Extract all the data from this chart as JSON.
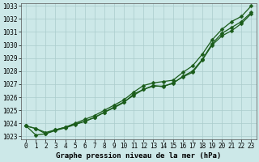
{
  "bg_color": "#cce8e8",
  "grid_color": "#aacccc",
  "line_color": "#1a5c1a",
  "xlabel": "Graphe pression niveau de la mer (hPa)",
  "xlim": [
    -0.5,
    23.5
  ],
  "ylim": [
    1022.8,
    1033.2
  ],
  "yticks": [
    1023,
    1024,
    1025,
    1026,
    1027,
    1028,
    1029,
    1030,
    1031,
    1032,
    1033
  ],
  "xticks": [
    0,
    1,
    2,
    3,
    4,
    5,
    6,
    7,
    8,
    9,
    10,
    11,
    12,
    13,
    14,
    15,
    16,
    17,
    18,
    19,
    20,
    21,
    22,
    23
  ],
  "line1": [
    1023.8,
    1023.6,
    1023.2,
    1023.5,
    1023.7,
    1024.0,
    1024.3,
    1024.6,
    1025.0,
    1025.4,
    1025.8,
    1026.4,
    1026.9,
    1027.1,
    1027.2,
    1027.3,
    1027.9,
    1028.4,
    1029.3,
    1030.4,
    1031.2,
    1031.8,
    1032.2,
    1033.0
  ],
  "line2": [
    1023.8,
    1023.6,
    1023.3,
    1023.5,
    1023.7,
    1023.95,
    1024.15,
    1024.45,
    1024.85,
    1025.2,
    1025.6,
    1026.25,
    1026.6,
    1026.85,
    1026.85,
    1027.05,
    1027.6,
    1028.0,
    1028.9,
    1030.1,
    1030.9,
    1031.35,
    1031.8,
    1032.5
  ],
  "line3": [
    1023.8,
    1023.1,
    1023.2,
    1023.45,
    1023.65,
    1023.9,
    1024.15,
    1024.45,
    1024.85,
    1025.25,
    1025.65,
    1026.15,
    1026.6,
    1026.9,
    1026.8,
    1027.1,
    1027.55,
    1027.9,
    1028.85,
    1030.0,
    1030.7,
    1031.1,
    1031.65,
    1032.4
  ],
  "marker": "D",
  "markersize": 2.5,
  "linewidth": 0.9,
  "tick_fontsize": 5.5,
  "label_fontsize": 6.5
}
